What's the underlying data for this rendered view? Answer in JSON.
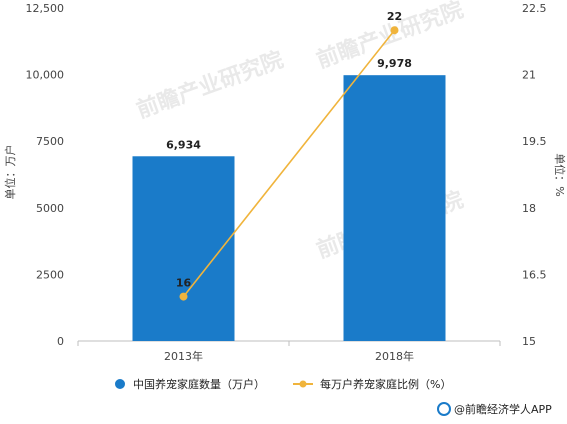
{
  "chart_data": {
    "type": "bar",
    "categories": [
      "2013年",
      "2018年"
    ],
    "series": [
      {
        "name": "中国养宠家庭数量（万户）",
        "type": "bar",
        "axis": "left",
        "values": [
          6934,
          9978
        ],
        "labels": [
          "6,934",
          "9,978"
        ],
        "color": "#1a7bc9"
      },
      {
        "name": "每万户养宠家庭比例（%）",
        "type": "line",
        "axis": "right",
        "values": [
          16,
          22
        ],
        "labels": [
          "16",
          "22"
        ],
        "color": "#f0b43c"
      }
    ],
    "y_left": {
      "label": "单位：万户",
      "min": 0,
      "max": 12500,
      "ticks": [
        "0",
        "2500",
        "5000",
        "7500",
        "10,000",
        "12,500"
      ],
      "tick_values": [
        0,
        2500,
        5000,
        7500,
        10000,
        12500
      ]
    },
    "y_right": {
      "label": "单位：%",
      "min": 15,
      "max": 22.5,
      "ticks": [
        "15",
        "16.5",
        "18",
        "19.5",
        "21",
        "22.5"
      ],
      "tick_values": [
        15,
        16.5,
        18,
        19.5,
        21,
        22.5
      ]
    },
    "legend_position": "bottom",
    "grid": false
  },
  "watermark": "前瞻产业研究院",
  "credit": "@前瞻经济学人APP",
  "colors": {
    "axis": "#bfbfbf",
    "bar": "#1a7bc9",
    "line": "#f0b43c"
  }
}
